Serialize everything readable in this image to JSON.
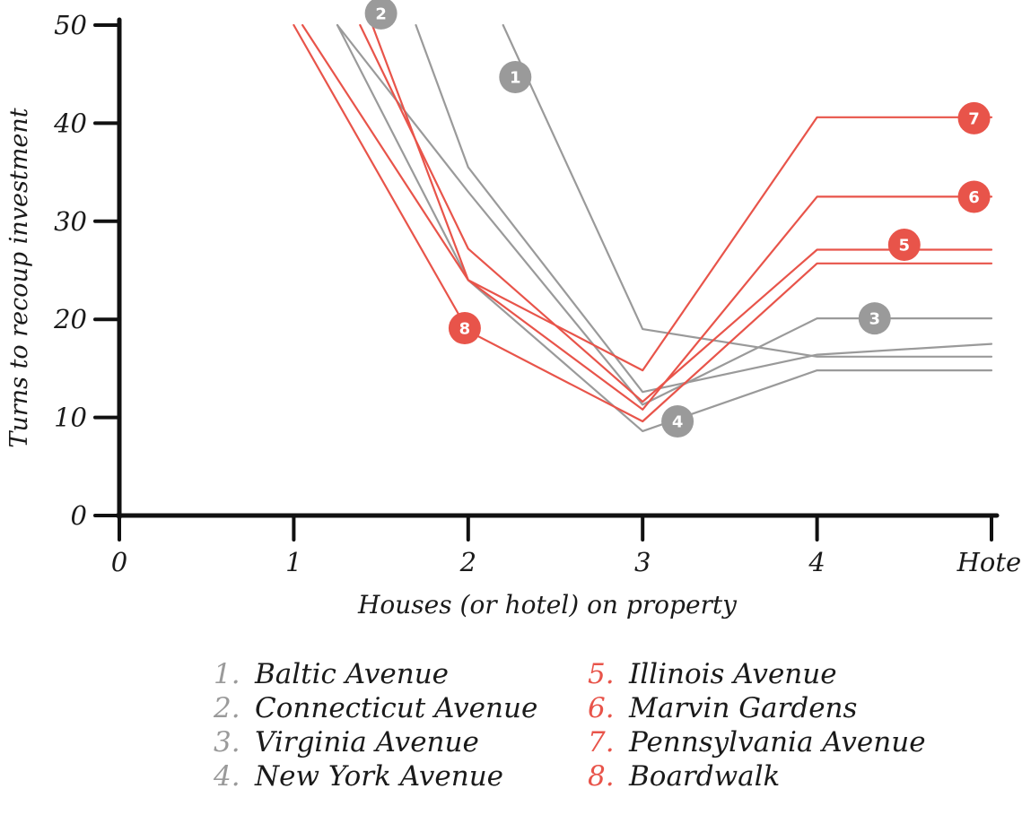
{
  "chart_data": {
    "type": "line",
    "xlabel": "Houses (or hotel) on property",
    "ylabel": "Turns to recoup investment",
    "x_ticks": [
      "0",
      "1",
      "2",
      "3",
      "4",
      "Hotel"
    ],
    "y_ticks": [
      "0",
      "10",
      "20",
      "30",
      "40",
      "50"
    ],
    "xlim": [
      0,
      5
    ],
    "ylim": [
      0,
      50
    ],
    "grid": false,
    "colors": {
      "gray": "#9a9a9a",
      "red": "#e8544a",
      "axis": "#111111"
    },
    "series": [
      {
        "name": "Baltic Avenue",
        "marker": "1",
        "group": "gray",
        "points": [
          [
            2.2,
            50
          ],
          [
            3,
            19
          ],
          [
            4,
            16.2
          ],
          [
            5,
            16.2
          ]
        ]
      },
      {
        "name": "Connecticut Avenue",
        "marker": "2",
        "group": "gray",
        "points": [
          [
            1.7,
            50
          ],
          [
            2,
            35.5
          ],
          [
            3,
            12.6
          ],
          [
            4,
            16.4
          ],
          [
            5,
            17.5
          ]
        ]
      },
      {
        "name": "Virginia Avenue",
        "marker": "3",
        "group": "gray",
        "points": [
          [
            1.25,
            50
          ],
          [
            2,
            33
          ],
          [
            3,
            11.3
          ],
          [
            4,
            20.1
          ],
          [
            5,
            20.1
          ]
        ]
      },
      {
        "name": "New York Avenue",
        "marker": "4",
        "group": "gray",
        "points": [
          [
            1.25,
            50
          ],
          [
            2,
            24
          ],
          [
            3,
            8.6
          ],
          [
            4,
            14.8
          ],
          [
            5,
            14.8
          ]
        ]
      },
      {
        "name": "Illinois Avenue",
        "marker": "5",
        "group": "red",
        "points": [
          [
            1.38,
            50
          ],
          [
            2,
            27.2
          ],
          [
            3,
            11.6
          ],
          [
            4,
            27.1
          ],
          [
            5,
            27.1
          ]
        ]
      },
      {
        "name": "Marvin Gardens",
        "marker": "6",
        "group": "red",
        "points": [
          [
            1.05,
            50
          ],
          [
            2,
            24
          ],
          [
            3,
            10.8
          ],
          [
            4,
            32.5
          ],
          [
            5,
            32.5
          ]
        ]
      },
      {
        "name": "Pennsylvania Avenue",
        "marker": "7",
        "group": "red",
        "points": [
          [
            1.45,
            50
          ],
          [
            2,
            24
          ],
          [
            3,
            14.8
          ],
          [
            4,
            40.6
          ],
          [
            5,
            40.6
          ]
        ]
      },
      {
        "name": "Boardwalk",
        "marker": "8",
        "group": "red",
        "points": [
          [
            1,
            50
          ],
          [
            2,
            18.8
          ],
          [
            3,
            9.6
          ],
          [
            4,
            25.7
          ],
          [
            5,
            25.7
          ]
        ]
      }
    ],
    "markers": [
      {
        "label": "1",
        "group": "gray",
        "x": 2.27,
        "y": 44.7
      },
      {
        "label": "2",
        "group": "gray",
        "x": 1.5,
        "y": 51.2
      },
      {
        "label": "3",
        "group": "gray",
        "x": 4.33,
        "y": 20.1
      },
      {
        "label": "4",
        "group": "gray",
        "x": 3.2,
        "y": 9.6
      },
      {
        "label": "5",
        "group": "red",
        "x": 4.5,
        "y": 27.6
      },
      {
        "label": "6",
        "group": "red",
        "x": 4.9,
        "y": 32.5
      },
      {
        "label": "7",
        "group": "red",
        "x": 4.9,
        "y": 40.5
      },
      {
        "label": "8",
        "group": "red",
        "x": 1.98,
        "y": 19.1
      }
    ]
  },
  "legend": {
    "left": [
      {
        "num": "1.",
        "name": "Baltic Avenue"
      },
      {
        "num": "2.",
        "name": "Connecticut Avenue"
      },
      {
        "num": "3.",
        "name": "Virginia Avenue"
      },
      {
        "num": "4.",
        "name": "New York Avenue"
      }
    ],
    "right": [
      {
        "num": "5.",
        "name": "Illinois Avenue"
      },
      {
        "num": "6.",
        "name": "Marvin Gardens"
      },
      {
        "num": "7.",
        "name": "Pennsylvania Avenue"
      },
      {
        "num": "8.",
        "name": "Boardwalk"
      }
    ]
  }
}
